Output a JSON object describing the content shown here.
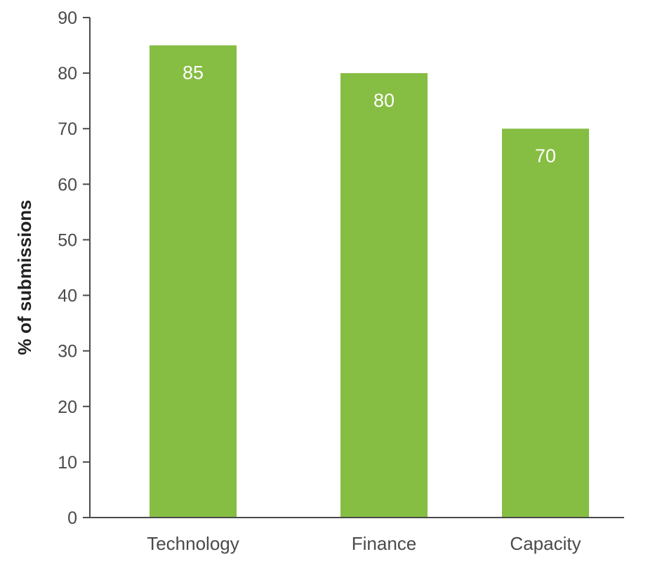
{
  "chart_data": {
    "type": "bar",
    "categories": [
      "Technology",
      "Finance",
      "Capacity"
    ],
    "values": [
      85,
      80,
      70
    ],
    "data_labels": [
      "85",
      "80",
      "70"
    ],
    "ylabel": "% of submissions",
    "xlabel": "",
    "ylim": [
      0,
      90
    ],
    "yticks": [
      0,
      10,
      20,
      30,
      40,
      50,
      60,
      70,
      80,
      90
    ],
    "grid": false,
    "bar_color": "#86bd43",
    "axis_color": "#4a4a4a"
  }
}
